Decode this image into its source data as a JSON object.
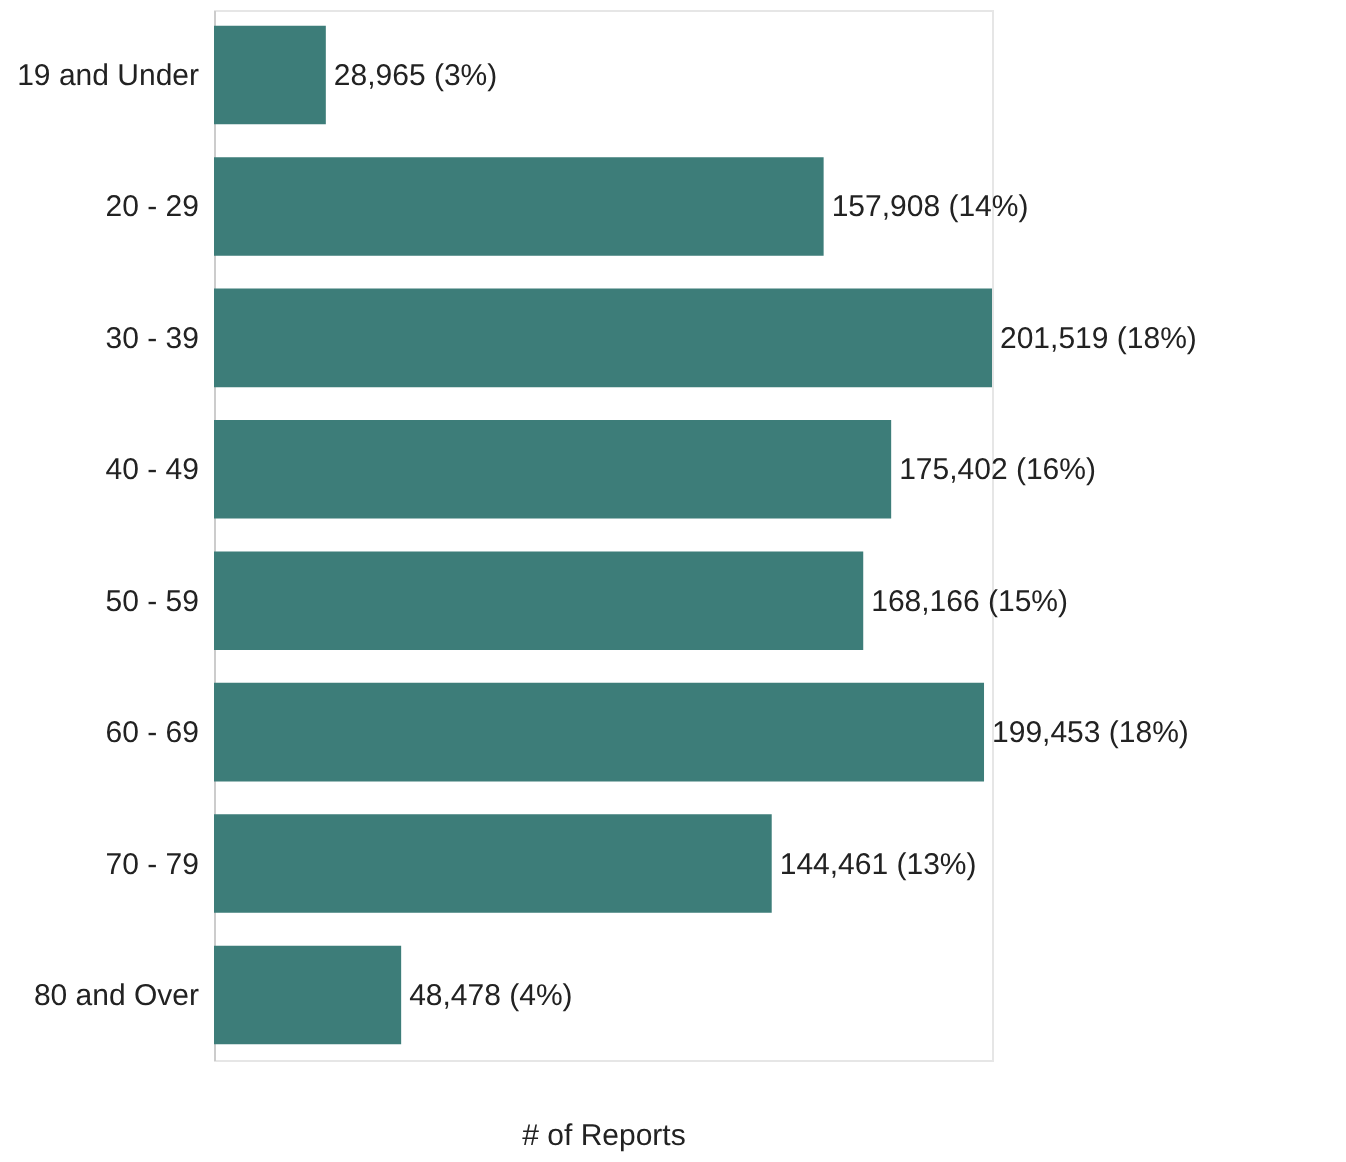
{
  "chart_data": {
    "type": "bar",
    "orientation": "horizontal",
    "xlabel": "# of Reports",
    "categories": [
      "19 and Under",
      "20 - 29",
      "30 - 39",
      "40 - 49",
      "50 - 59",
      "60 - 69",
      "70 - 79",
      "80 and Over"
    ],
    "values": [
      28965,
      157908,
      201519,
      175402,
      168166,
      199453,
      144461,
      48478
    ],
    "value_labels": [
      "28,965 (3%)",
      "157,908 (14%)",
      "201,519 (18%)",
      "175,402 (16%)",
      "168,166 (15%)",
      "199,453 (18%)",
      "144,461 (13%)",
      "48,478 (4%)"
    ],
    "color": "#3d7d79",
    "grid": false,
    "tick_labels": "y"
  }
}
